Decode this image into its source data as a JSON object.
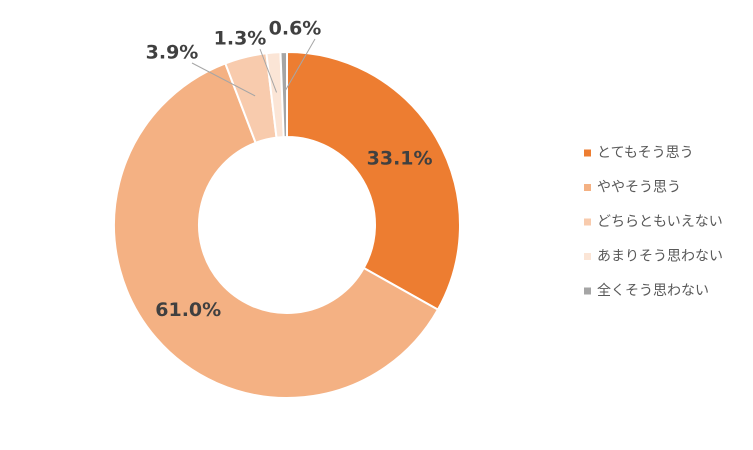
{
  "chart_data": {
    "type": "donut",
    "categories": [
      "とてもそう思う",
      "ややそう思う",
      "どちらともいえない",
      "あまりそう思わない",
      "全くそう思わない"
    ],
    "values": [
      33.1,
      61.0,
      3.9,
      1.3,
      0.6
    ],
    "value_labels": [
      "33.1%",
      "61.0%",
      "3.9%",
      "1.3%",
      "0.6%"
    ],
    "colors": [
      "#ED7D31",
      "#F4B183",
      "#F8CBAD",
      "#FBE5D6",
      "#A5A5A5"
    ],
    "legend": "right"
  }
}
